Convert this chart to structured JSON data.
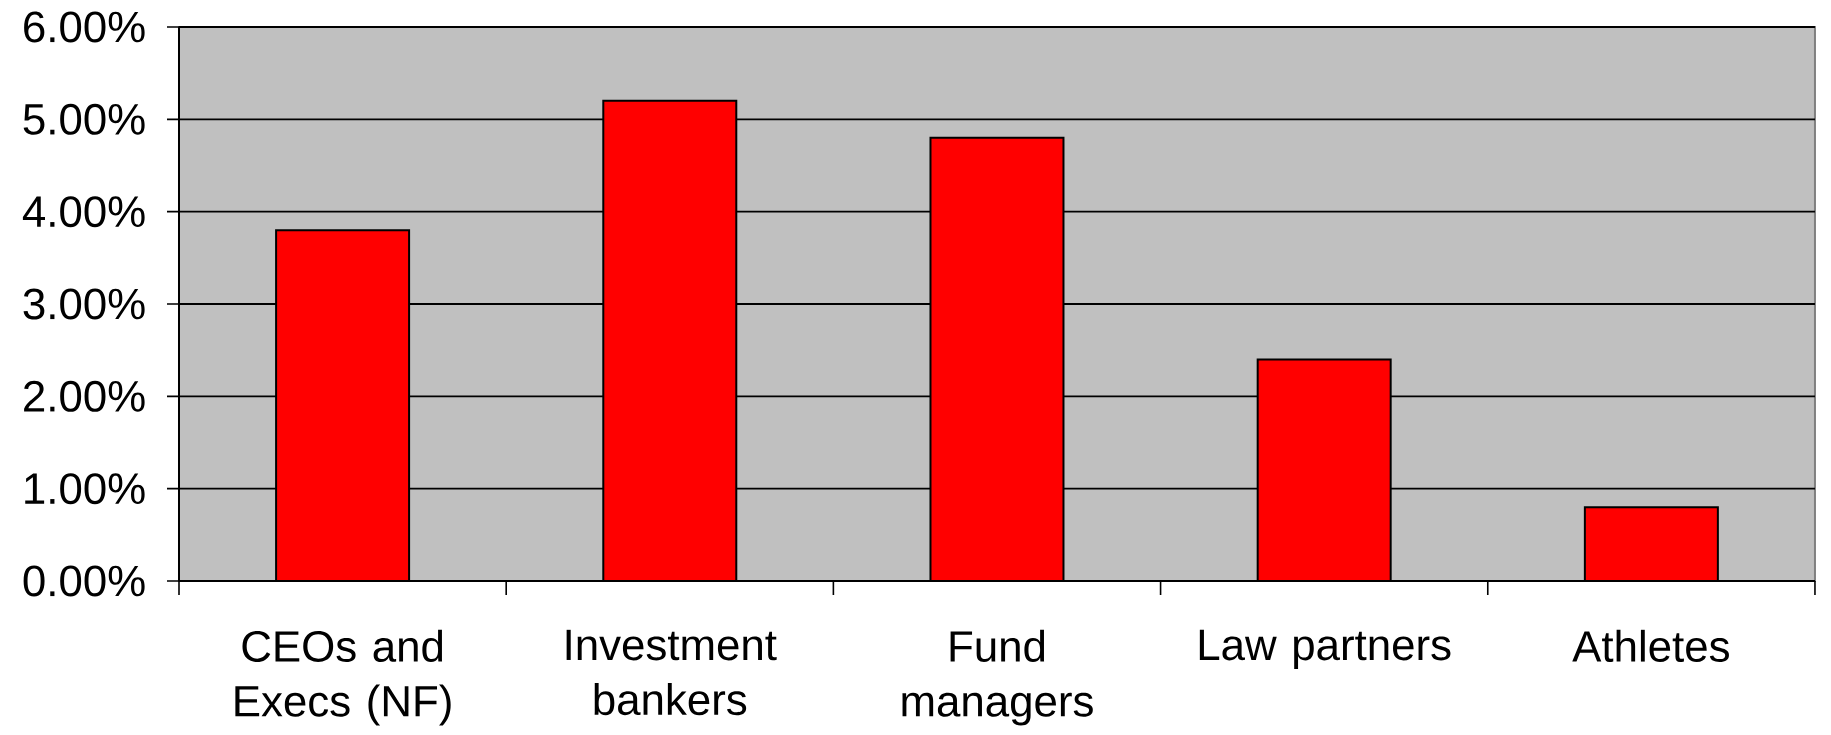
{
  "chart_data": {
    "type": "bar",
    "categories": [
      "CEOs and Execs (NF)",
      "Investment bankers",
      "Fund managers",
      "Law partners",
      "Athletes"
    ],
    "values": [
      3.8,
      5.2,
      4.8,
      2.4,
      0.8
    ],
    "color": "#ff0000",
    "ylim": [
      0,
      6
    ],
    "yticks": [
      {
        "value": 0,
        "label": "0.00%"
      },
      {
        "value": 1,
        "label": "1.00%"
      },
      {
        "value": 2,
        "label": "2.00%"
      },
      {
        "value": 3,
        "label": "3.00%"
      },
      {
        "value": 4,
        "label": "4.00%"
      },
      {
        "value": 5,
        "label": "5.00%"
      },
      {
        "value": 6,
        "label": "6.00%"
      }
    ],
    "grid": "y"
  }
}
